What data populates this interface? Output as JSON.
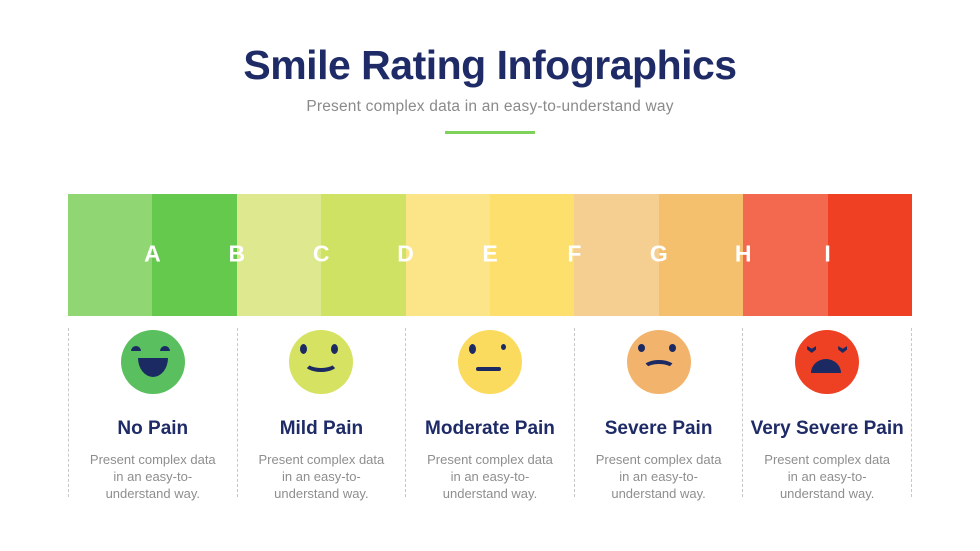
{
  "header": {
    "title": "Smile Rating Infographics",
    "subtitle": "Present complex data in an easy-to-understand way"
  },
  "colors": {
    "title_navy": "#1e2b66",
    "face_feature_navy": "#1b2a63",
    "accent_green": "#7ed25b",
    "body_text_gray": "#8e8e8e",
    "divider_gray": "#c8c8c8",
    "scale_letter_white": "#ffffff"
  },
  "pain_scale": {
    "segment_colors": [
      "#90d774",
      "#64c94c",
      "#dde88f",
      "#cfe263",
      "#fce488",
      "#fcdf6d",
      "#f5cf92",
      "#f4c06e",
      "#f2694f",
      "#ef4023"
    ],
    "letters": [
      "A",
      "B",
      "C",
      "D",
      "E",
      "F",
      "G",
      "H",
      "I"
    ]
  },
  "ratings": [
    {
      "label": "No Pain",
      "face": "happy-open-smile-face",
      "face_color": "#5ac05f",
      "description": "Present complex data\nin an easy-to-\nunderstand way."
    },
    {
      "label": "Mild Pain",
      "face": "slight-smile-face",
      "face_color": "#d6e262",
      "description": "Present complex data\nin an easy-to-\nunderstand way."
    },
    {
      "label": "Moderate Pain",
      "face": "neutral-face",
      "face_color": "#fbdb5e",
      "description": "Present complex data\nin an easy-to-\nunderstand way."
    },
    {
      "label": "Severe Pain",
      "face": "sad-frown-face",
      "face_color": "#f2b46c",
      "description": "Present complex data\nin an easy-to-\nunderstand way."
    },
    {
      "label": "Very Severe Pain",
      "face": "crying-open-frown-face",
      "face_color": "#ee4023",
      "description": "Present complex data\nin an easy-to-\nunderstand way."
    }
  ]
}
